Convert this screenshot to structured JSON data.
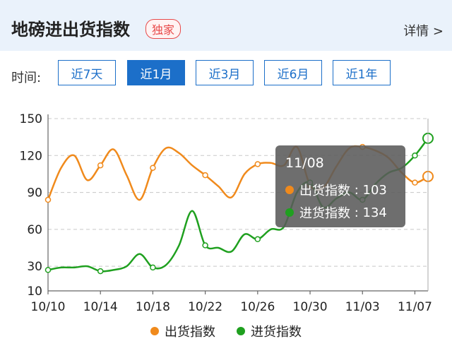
{
  "header": {
    "title": "地磅进出货指数",
    "badge": "独家",
    "detail": "详情 >"
  },
  "filters": {
    "label": "时间:",
    "options": [
      "近7天",
      "近1月",
      "近3月",
      "近6月",
      "近1年"
    ],
    "active_index": 1
  },
  "colors": {
    "out": "#f08a1c",
    "in": "#1fa01f",
    "accent": "#1c6fc9"
  },
  "tooltip": {
    "date": "11/08",
    "out_label": "出货指数",
    "out_value": "103",
    "in_label": "进货指数",
    "in_value": "134"
  },
  "chart_data": {
    "type": "line",
    "x": [
      "10/10",
      "10/11",
      "10/12",
      "10/13",
      "10/14",
      "10/15",
      "10/16",
      "10/17",
      "10/18",
      "10/19",
      "10/20",
      "10/21",
      "10/22",
      "10/23",
      "10/24",
      "10/25",
      "10/26",
      "10/27",
      "10/28",
      "10/29",
      "10/30",
      "10/31",
      "11/01",
      "11/02",
      "11/03",
      "11/04",
      "11/05",
      "11/06",
      "11/07",
      "11/08"
    ],
    "xticks": [
      "10/10",
      "10/14",
      "10/18",
      "10/22",
      "10/26",
      "10/30",
      "11/03",
      "11/07"
    ],
    "yticks": [
      10,
      30,
      60,
      90,
      120,
      150
    ],
    "ylim": [
      10,
      150
    ],
    "grid": true,
    "legend_position": "bottom",
    "series": [
      {
        "name": "出货指数",
        "color": "#f08a1c",
        "values": [
          84,
          110,
          120,
          100,
          112,
          125,
          104,
          84,
          110,
          126,
          122,
          112,
          104,
          95,
          86,
          105,
          113,
          114,
          112,
          127,
          96,
          94,
          111,
          126,
          127,
          124,
          118,
          106,
          98,
          103
        ]
      },
      {
        "name": "进货指数",
        "color": "#1fa01f",
        "values": [
          27,
          29,
          29,
          30,
          26,
          27,
          30,
          40,
          29,
          31,
          47,
          75,
          47,
          45,
          42,
          56,
          52,
          60,
          62,
          90,
          98,
          78,
          85,
          90,
          84,
          97,
          106,
          110,
          120,
          134
        ]
      }
    ]
  }
}
